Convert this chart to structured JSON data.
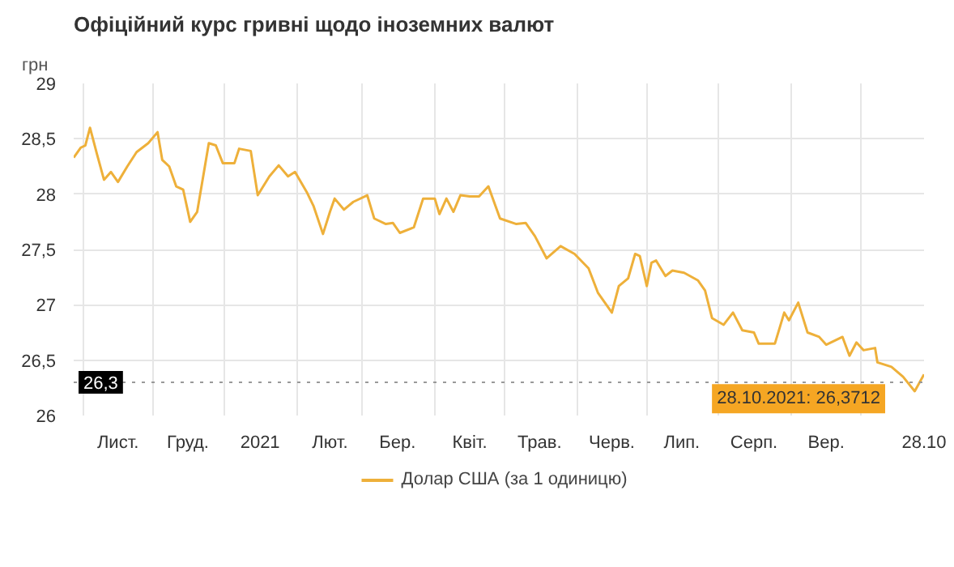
{
  "chart_data": {
    "type": "line",
    "title": "Офіційний курс гривні щодо іноземних валют",
    "ylabel": "грн",
    "x": [
      "2020-10-28",
      "2020-10-31",
      "2020-11-02",
      "2020-11-04",
      "2020-11-07",
      "2020-11-10",
      "2020-11-13",
      "2020-11-16",
      "2020-11-20",
      "2020-11-24",
      "2020-11-29",
      "2020-12-03",
      "2020-12-05",
      "2020-12-08",
      "2020-12-11",
      "2020-12-14",
      "2020-12-17",
      "2020-12-20",
      "2020-12-25",
      "2020-12-28",
      "2020-12-31",
      "2021-01-05",
      "2021-01-07",
      "2021-01-12",
      "2021-01-15",
      "2021-01-20",
      "2021-01-24",
      "2021-01-28",
      "2021-01-31",
      "2021-02-05",
      "2021-02-08",
      "2021-02-12",
      "2021-02-15",
      "2021-02-17",
      "2021-02-21",
      "2021-02-25",
      "2021-03-03",
      "2021-03-06",
      "2021-03-11",
      "2021-03-14",
      "2021-03-17",
      "2021-03-23",
      "2021-03-27",
      "2021-04-01",
      "2021-04-03",
      "2021-04-06",
      "2021-04-09",
      "2021-04-12",
      "2021-04-16",
      "2021-04-20",
      "2021-04-24",
      "2021-04-29",
      "2021-05-06",
      "2021-05-10",
      "2021-05-14",
      "2021-05-19",
      "2021-05-25",
      "2021-05-31",
      "2021-06-06",
      "2021-06-10",
      "2021-06-16",
      "2021-06-19",
      "2021-06-23",
      "2021-06-26",
      "2021-06-28",
      "2021-07-01",
      "2021-07-03",
      "2021-07-05",
      "2021-07-09",
      "2021-07-12",
      "2021-07-17",
      "2021-07-23",
      "2021-07-26",
      "2021-07-29",
      "2021-08-03",
      "2021-08-07",
      "2021-08-11",
      "2021-08-16",
      "2021-08-18",
      "2021-08-25",
      "2021-08-29",
      "2021-08-31",
      "2021-09-04",
      "2021-09-08",
      "2021-09-13",
      "2021-09-16",
      "2021-09-23",
      "2021-09-26",
      "2021-09-29",
      "2021-10-02",
      "2021-10-07",
      "2021-10-08",
      "2021-10-14",
      "2021-10-19",
      "2021-10-24",
      "2021-10-28"
    ],
    "series": [
      {
        "name": "Долар США (за 1 одиницю)",
        "color": "#eeb03a",
        "values": [
          28.33,
          28.42,
          28.44,
          28.6,
          28.36,
          28.13,
          28.2,
          28.11,
          28.25,
          28.38,
          28.46,
          28.56,
          28.31,
          28.25,
          28.07,
          28.04,
          27.75,
          27.84,
          28.46,
          28.44,
          28.28,
          28.28,
          28.41,
          28.39,
          27.99,
          28.16,
          28.26,
          28.16,
          28.2,
          28.02,
          27.89,
          27.64,
          27.84,
          27.96,
          27.86,
          27.93,
          27.99,
          27.78,
          27.73,
          27.74,
          27.65,
          27.7,
          27.96,
          27.96,
          27.82,
          27.96,
          27.84,
          27.99,
          27.98,
          27.98,
          28.07,
          27.78,
          27.73,
          27.74,
          27.62,
          27.42,
          27.53,
          27.46,
          27.33,
          27.11,
          26.93,
          27.17,
          27.24,
          27.46,
          27.44,
          27.17,
          27.38,
          27.4,
          27.26,
          27.31,
          27.29,
          27.22,
          27.13,
          26.88,
          26.82,
          26.93,
          26.77,
          26.75,
          26.65,
          26.65,
          26.93,
          26.86,
          27.02,
          26.75,
          26.71,
          26.64,
          26.71,
          26.54,
          26.66,
          26.59,
          26.61,
          26.48,
          26.44,
          26.35,
          26.22,
          26.3712
        ]
      }
    ],
    "xlim": [
      "2020-10-28",
      "2021-10-28"
    ],
    "xticks": [
      {
        "value": "2020-11-01",
        "label": null
      },
      {
        "value": "2020-11-16",
        "label": "Лист."
      },
      {
        "value": "2020-12-01",
        "label": null
      },
      {
        "value": "2020-12-16",
        "label": "Груд."
      },
      {
        "value": "2021-01-01",
        "label": null
      },
      {
        "value": "2021-01-16",
        "label": "2021"
      },
      {
        "value": "2021-02-01",
        "label": null
      },
      {
        "value": "2021-02-15",
        "label": "Лют."
      },
      {
        "value": "2021-03-01",
        "label": null
      },
      {
        "value": "2021-03-16",
        "label": "Бер."
      },
      {
        "value": "2021-04-01",
        "label": null
      },
      {
        "value": "2021-04-16",
        "label": "Квіт."
      },
      {
        "value": "2021-05-01",
        "label": null
      },
      {
        "value": "2021-05-16",
        "label": "Трав."
      },
      {
        "value": "2021-06-01",
        "label": null
      },
      {
        "value": "2021-06-16",
        "label": "Черв."
      },
      {
        "value": "2021-07-01",
        "label": null
      },
      {
        "value": "2021-07-16",
        "label": "Лип."
      },
      {
        "value": "2021-08-01",
        "label": null
      },
      {
        "value": "2021-08-16",
        "label": "Серп."
      },
      {
        "value": "2021-09-01",
        "label": null
      },
      {
        "value": "2021-09-16",
        "label": "Вер."
      },
      {
        "value": "2021-10-01",
        "label": null
      },
      {
        "value": "2021-10-28",
        "label": "28.10"
      }
    ],
    "ylim": [
      26,
      29
    ],
    "yticks": [
      26,
      {
        "value": 26.5,
        "label": "26,5"
      },
      27,
      {
        "value": 27.5,
        "label": "27,5"
      },
      28,
      {
        "value": 28.5,
        "label": "28,5"
      },
      29
    ],
    "ref_lines": [
      {
        "axis": "y",
        "value": 26.3,
        "label": "26,3",
        "color": "#999999",
        "line_style": "dotted"
      }
    ],
    "annotations": [
      {
        "text": "28.10.2021: 26,3712",
        "x": "2021-10-28",
        "y": 26.3712
      }
    ],
    "grid": true,
    "legend": "bottom",
    "marker": "none",
    "line_style": "solid"
  }
}
